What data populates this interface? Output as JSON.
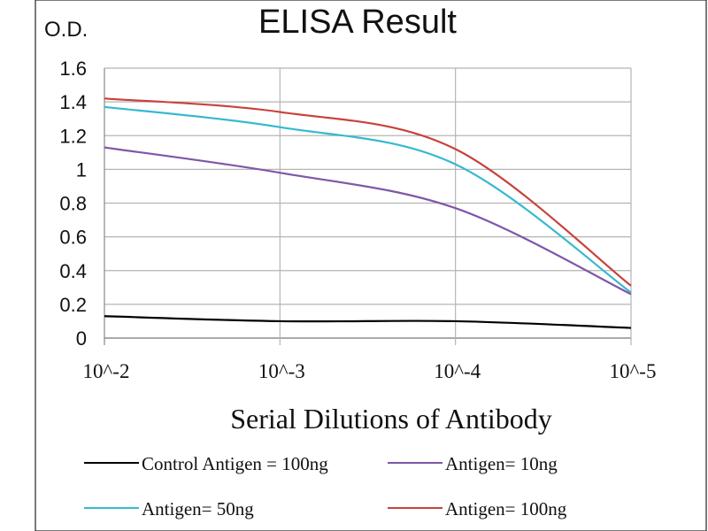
{
  "chart_data": {
    "type": "line",
    "title": "ELISA Result",
    "ylabel": "O.D.",
    "xlabel": "Serial Dilutions  of Antibody",
    "categories": [
      "10^-2",
      "10^-3",
      "10^-4",
      "10^-5"
    ],
    "x_scale": "log",
    "ylim": [
      0,
      1.6
    ],
    "yticks": [
      0,
      0.2,
      0.4,
      0.6,
      0.8,
      1,
      1.2,
      1.4,
      1.6
    ],
    "ytick_labels": [
      "0",
      "0.2",
      "0.4",
      "0.6",
      "0.8",
      "1",
      "1.2",
      "1.4",
      "1.6"
    ],
    "grid": true,
    "legend_position": "bottom",
    "series": [
      {
        "name": "Control Antigen = 100ng",
        "color": "#000000",
        "values": [
          0.13,
          0.1,
          0.1,
          0.06
        ]
      },
      {
        "name": "Antigen= 10ng",
        "color": "#7e57a8",
        "values": [
          1.13,
          0.98,
          0.77,
          0.26
        ]
      },
      {
        "name": "Antigen= 50ng",
        "color": "#36b9cf",
        "values": [
          1.37,
          1.25,
          1.03,
          0.27
        ]
      },
      {
        "name": "Antigen= 100ng",
        "color": "#c8413c",
        "values": [
          1.42,
          1.34,
          1.12,
          0.31
        ]
      }
    ]
  }
}
